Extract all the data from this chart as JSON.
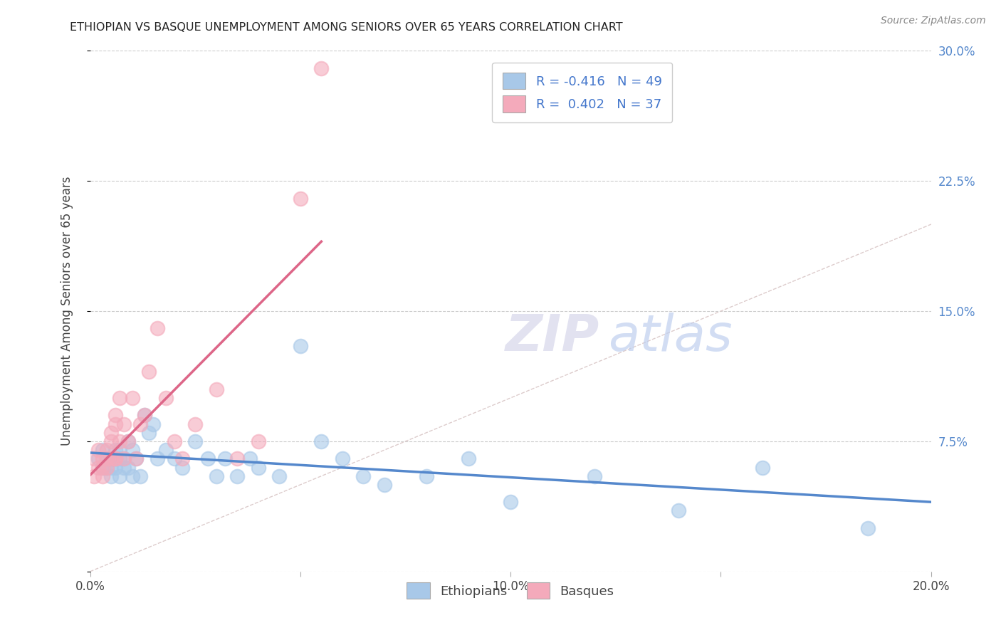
{
  "title": "ETHIOPIAN VS BASQUE UNEMPLOYMENT AMONG SENIORS OVER 65 YEARS CORRELATION CHART",
  "source": "Source: ZipAtlas.com",
  "ylabel": "Unemployment Among Seniors over 65 years",
  "xlim": [
    0.0,
    0.2
  ],
  "ylim": [
    0.0,
    0.3
  ],
  "xticks": [
    0.0,
    0.05,
    0.1,
    0.15,
    0.2
  ],
  "xtick_labels": [
    "0.0%",
    "",
    "10.0%",
    "",
    "20.0%"
  ],
  "yticks": [
    0.0,
    0.075,
    0.15,
    0.225,
    0.3
  ],
  "ytick_labels_right": [
    "",
    "7.5%",
    "15.0%",
    "22.5%",
    "30.0%"
  ],
  "legend_labels": [
    "Ethiopians",
    "Basques"
  ],
  "blue_R": -0.416,
  "blue_N": 49,
  "pink_R": 0.402,
  "pink_N": 37,
  "blue_color": "#a8c8e8",
  "pink_color": "#f4aabb",
  "blue_line_color": "#5588cc",
  "pink_line_color": "#dd6688",
  "diagonal_color": "#ddcccc",
  "ethiopian_x": [
    0.002,
    0.003,
    0.003,
    0.004,
    0.004,
    0.005,
    0.005,
    0.005,
    0.006,
    0.006,
    0.006,
    0.007,
    0.007,
    0.007,
    0.008,
    0.008,
    0.009,
    0.009,
    0.01,
    0.01,
    0.011,
    0.012,
    0.013,
    0.014,
    0.015,
    0.016,
    0.018,
    0.02,
    0.022,
    0.025,
    0.028,
    0.03,
    0.032,
    0.035,
    0.038,
    0.04,
    0.045,
    0.05,
    0.055,
    0.06,
    0.065,
    0.07,
    0.08,
    0.09,
    0.1,
    0.12,
    0.14,
    0.16,
    0.185
  ],
  "ethiopian_y": [
    0.065,
    0.07,
    0.06,
    0.065,
    0.06,
    0.065,
    0.055,
    0.06,
    0.065,
    0.07,
    0.06,
    0.055,
    0.065,
    0.07,
    0.06,
    0.065,
    0.075,
    0.06,
    0.07,
    0.055,
    0.065,
    0.055,
    0.09,
    0.08,
    0.085,
    0.065,
    0.07,
    0.065,
    0.06,
    0.075,
    0.065,
    0.055,
    0.065,
    0.055,
    0.065,
    0.06,
    0.055,
    0.13,
    0.075,
    0.065,
    0.055,
    0.05,
    0.055,
    0.065,
    0.04,
    0.055,
    0.035,
    0.06,
    0.025
  ],
  "basque_x": [
    0.001,
    0.001,
    0.002,
    0.002,
    0.003,
    0.003,
    0.003,
    0.004,
    0.004,
    0.004,
    0.005,
    0.005,
    0.005,
    0.006,
    0.006,
    0.006,
    0.006,
    0.007,
    0.007,
    0.008,
    0.008,
    0.009,
    0.01,
    0.011,
    0.012,
    0.013,
    0.014,
    0.016,
    0.018,
    0.02,
    0.022,
    0.025,
    0.03,
    0.035,
    0.04,
    0.05,
    0.055
  ],
  "basque_y": [
    0.065,
    0.055,
    0.07,
    0.06,
    0.065,
    0.06,
    0.055,
    0.065,
    0.07,
    0.06,
    0.065,
    0.08,
    0.075,
    0.065,
    0.085,
    0.09,
    0.065,
    0.1,
    0.075,
    0.085,
    0.065,
    0.075,
    0.1,
    0.065,
    0.085,
    0.09,
    0.115,
    0.14,
    0.1,
    0.075,
    0.065,
    0.085,
    0.105,
    0.065,
    0.075,
    0.215,
    0.29
  ]
}
